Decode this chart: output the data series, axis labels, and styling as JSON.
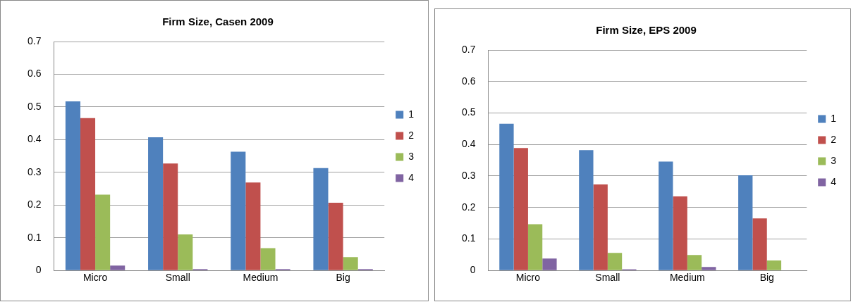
{
  "chart_data": [
    {
      "type": "bar",
      "title": "Firm Size, Casen 2009",
      "categories": [
        "Micro",
        "Small",
        "Medium",
        "Big"
      ],
      "series": [
        {
          "name": "1",
          "color": "#4f81bd",
          "values": [
            0.517,
            0.407,
            0.363,
            0.313
          ]
        },
        {
          "name": "2",
          "color": "#c0504d",
          "values": [
            0.466,
            0.327,
            0.269,
            0.207
          ]
        },
        {
          "name": "3",
          "color": "#9bbb59",
          "values": [
            0.232,
            0.11,
            0.068,
            0.041
          ]
        },
        {
          "name": "4",
          "color": "#8064a2",
          "values": [
            0.015,
            0.004,
            0.004,
            0.004
          ]
        }
      ],
      "ylim": [
        0,
        0.7
      ],
      "yticks": [
        0,
        0.1,
        0.2,
        0.3,
        0.4,
        0.5,
        0.6,
        0.7
      ],
      "grid": "y",
      "legend": "right"
    },
    {
      "type": "bar",
      "title": "Firm Size, EPS 2009",
      "categories": [
        "Micro",
        "Small",
        "Medium",
        "Big"
      ],
      "series": [
        {
          "name": "1",
          "color": "#4f81bd",
          "values": [
            0.466,
            0.382,
            0.346,
            0.302
          ]
        },
        {
          "name": "2",
          "color": "#c0504d",
          "values": [
            0.389,
            0.273,
            0.235,
            0.165
          ]
        },
        {
          "name": "3",
          "color": "#9bbb59",
          "values": [
            0.147,
            0.056,
            0.049,
            0.032
          ]
        },
        {
          "name": "4",
          "color": "#8064a2",
          "values": [
            0.038,
            0.004,
            0.011,
            0
          ]
        }
      ],
      "ylim": [
        0,
        0.7
      ],
      "yticks": [
        0,
        0.1,
        0.2,
        0.3,
        0.4,
        0.5,
        0.6,
        0.7
      ],
      "grid": "y",
      "legend": "right"
    }
  ]
}
